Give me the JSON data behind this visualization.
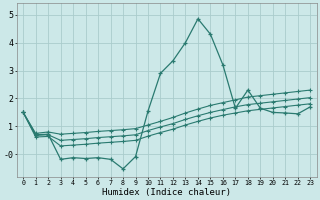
{
  "xlabel": "Humidex (Indice chaleur)",
  "bg_color": "#cce8e8",
  "line_color": "#2a7a70",
  "grid_color": "#aacccc",
  "x_main": [
    0,
    1,
    2,
    3,
    4,
    5,
    6,
    7,
    8,
    9,
    10,
    11,
    12,
    13,
    14,
    15,
    16,
    17,
    18,
    19,
    20,
    21,
    22,
    23
  ],
  "y_main": [
    1.5,
    0.7,
    0.72,
    -0.18,
    -0.12,
    -0.15,
    -0.12,
    -0.18,
    -0.52,
    -0.08,
    1.55,
    2.9,
    3.35,
    4.0,
    4.85,
    4.3,
    3.2,
    1.65,
    2.3,
    1.65,
    1.5,
    1.48,
    1.45,
    1.7
  ],
  "y_upper": [
    1.5,
    0.75,
    0.8,
    0.72,
    0.75,
    0.78,
    0.82,
    0.85,
    0.88,
    0.92,
    1.05,
    1.18,
    1.32,
    1.48,
    1.62,
    1.75,
    1.85,
    1.95,
    2.05,
    2.1,
    2.15,
    2.2,
    2.25,
    2.3
  ],
  "y_mid": [
    1.5,
    0.68,
    0.7,
    0.5,
    0.53,
    0.56,
    0.6,
    0.63,
    0.66,
    0.7,
    0.85,
    0.98,
    1.1,
    1.25,
    1.38,
    1.5,
    1.6,
    1.7,
    1.78,
    1.83,
    1.88,
    1.93,
    1.98,
    2.03
  ],
  "y_lower": [
    1.5,
    0.62,
    0.64,
    0.3,
    0.33,
    0.36,
    0.4,
    0.43,
    0.46,
    0.5,
    0.65,
    0.78,
    0.9,
    1.05,
    1.18,
    1.3,
    1.4,
    1.48,
    1.56,
    1.61,
    1.66,
    1.71,
    1.76,
    1.81
  ],
  "xlim": [
    -0.5,
    23.5
  ],
  "ylim": [
    -0.8,
    5.4
  ],
  "yticks": [
    0,
    1,
    2,
    3,
    4,
    5
  ],
  "ytick_labels": [
    "-0",
    "1",
    "2",
    "3",
    "4",
    "5"
  ],
  "xticks": [
    0,
    1,
    2,
    3,
    4,
    5,
    6,
    7,
    8,
    9,
    10,
    11,
    12,
    13,
    14,
    15,
    16,
    17,
    18,
    19,
    20,
    21,
    22,
    23
  ]
}
